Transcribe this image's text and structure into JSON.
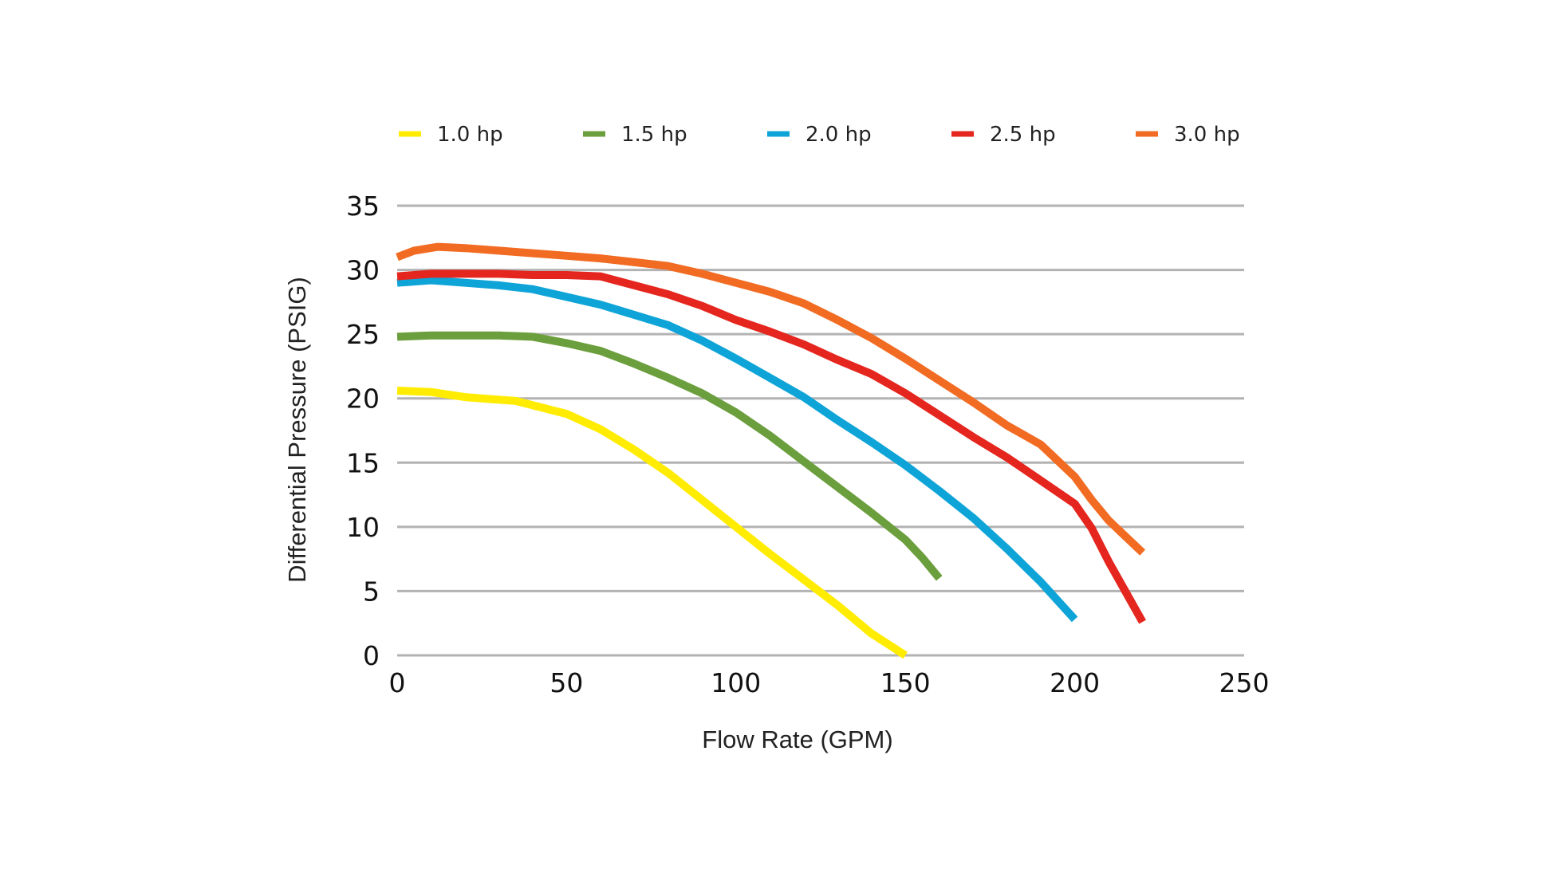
{
  "chart_data": {
    "type": "line",
    "title": "",
    "xlabel": "Flow Rate (GPM)",
    "ylabel": "Differential Pressure (PSIG)",
    "xlim": [
      0,
      250
    ],
    "ylim": [
      0,
      35
    ],
    "xticks": [
      0,
      50,
      100,
      150,
      200,
      250
    ],
    "yticks": [
      0,
      5,
      10,
      15,
      20,
      25,
      30,
      35
    ],
    "grid": "horizontal",
    "legend_position": "top",
    "series": [
      {
        "name": "1.0 hp",
        "color": "#ffec00",
        "x": [
          0,
          10,
          20,
          35,
          50,
          60,
          70,
          80,
          90,
          100,
          110,
          120,
          130,
          140,
          150
        ],
        "y": [
          20.6,
          20.5,
          20.1,
          19.8,
          18.8,
          17.6,
          16.0,
          14.2,
          12.1,
          10.0,
          7.9,
          5.9,
          3.9,
          1.7,
          0.0
        ]
      },
      {
        "name": "1.5 hp",
        "color": "#6b9e3c",
        "x": [
          0,
          10,
          20,
          30,
          40,
          50,
          60,
          70,
          80,
          90,
          100,
          110,
          120,
          130,
          140,
          150,
          155,
          160
        ],
        "y": [
          24.8,
          24.9,
          24.9,
          24.9,
          24.8,
          24.3,
          23.7,
          22.7,
          21.6,
          20.4,
          18.9,
          17.1,
          15.1,
          13.1,
          11.1,
          9.0,
          7.6,
          6.0
        ]
      },
      {
        "name": "2.0 hp",
        "color": "#0ea4d8",
        "x": [
          0,
          10,
          20,
          30,
          40,
          50,
          60,
          70,
          80,
          90,
          100,
          110,
          120,
          130,
          140,
          150,
          160,
          170,
          180,
          190,
          200
        ],
        "y": [
          29.0,
          29.2,
          29.0,
          28.8,
          28.5,
          27.9,
          27.3,
          26.5,
          25.7,
          24.5,
          23.1,
          21.6,
          20.1,
          18.3,
          16.6,
          14.8,
          12.8,
          10.7,
          8.3,
          5.7,
          2.8
        ]
      },
      {
        "name": "2.5 hp",
        "color": "#e5261f",
        "x": [
          0,
          10,
          20,
          30,
          40,
          50,
          60,
          70,
          80,
          90,
          100,
          110,
          120,
          130,
          140,
          150,
          160,
          170,
          180,
          190,
          200,
          205,
          210,
          220
        ],
        "y": [
          29.5,
          29.7,
          29.7,
          29.7,
          29.6,
          29.6,
          29.5,
          28.8,
          28.1,
          27.2,
          26.1,
          25.2,
          24.2,
          23.0,
          21.9,
          20.4,
          18.7,
          17.0,
          15.4,
          13.6,
          11.8,
          9.9,
          7.3,
          2.6
        ]
      },
      {
        "name": "3.0 hp",
        "color": "#f26b22",
        "x": [
          0,
          5,
          12,
          20,
          30,
          40,
          50,
          60,
          70,
          80,
          90,
          100,
          110,
          120,
          130,
          140,
          150,
          160,
          170,
          180,
          190,
          200,
          205,
          210,
          220
        ],
        "y": [
          31.0,
          31.5,
          31.8,
          31.7,
          31.5,
          31.3,
          31.1,
          30.9,
          30.6,
          30.3,
          29.7,
          29.0,
          28.3,
          27.4,
          26.1,
          24.7,
          23.1,
          21.4,
          19.7,
          17.9,
          16.4,
          13.9,
          12.1,
          10.5,
          8.0
        ]
      }
    ]
  }
}
